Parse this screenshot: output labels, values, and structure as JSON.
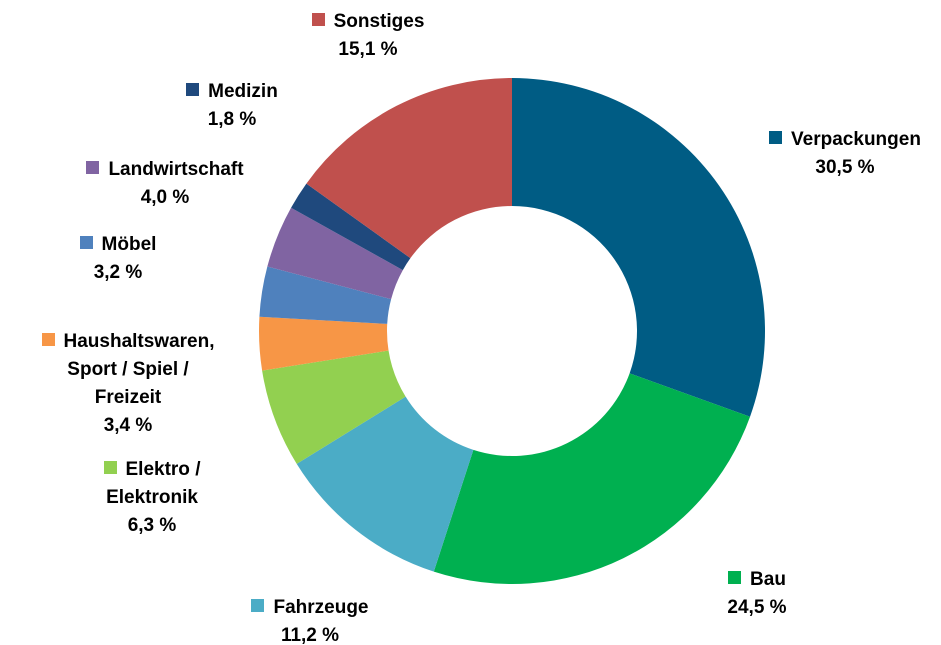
{
  "chart_data": {
    "type": "donut",
    "categories": [
      "Verpackungen",
      "Bau",
      "Fahrzeuge",
      "Elektro / Elektronik",
      "Haushaltswaren, Sport / Spiel / Freizeit",
      "Möbel",
      "Landwirtschaft",
      "Medizin",
      "Sonstiges"
    ],
    "values": [
      30.5,
      24.5,
      11.2,
      6.3,
      3.4,
      3.2,
      4.0,
      1.8,
      15.1
    ],
    "value_labels": [
      "30,5 %",
      "24,5 %",
      "11,2 %",
      "6,3 %",
      "3,4 %",
      "3,2 %",
      "4,0 %",
      "1,8 %",
      "15,1 %"
    ],
    "colors": [
      "#005c84",
      "#00b050",
      "#4bacc6",
      "#92d050",
      "#f79646",
      "#4f81bd",
      "#8064a2",
      "#1f497d",
      "#c0504d"
    ]
  }
}
